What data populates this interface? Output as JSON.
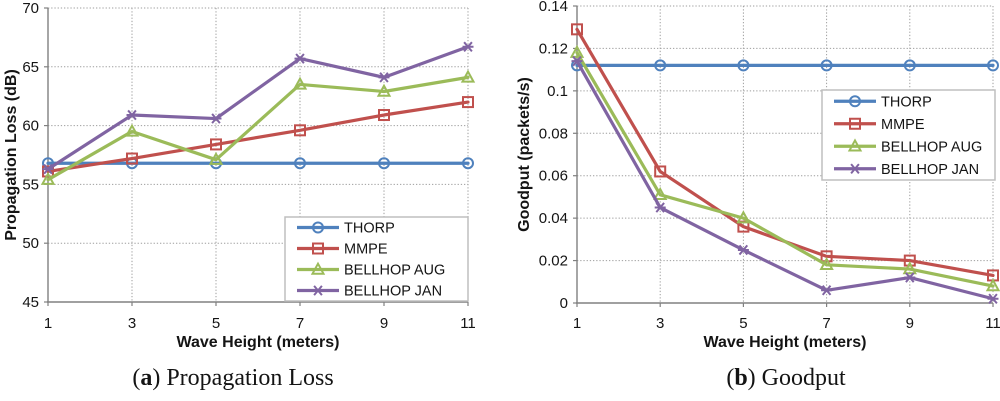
{
  "figure": {
    "background": "#ffffff",
    "grid_color": "#9e9e9e",
    "axis_color": "#808080",
    "legend_border_color": "#bfbfbf",
    "text_color": "#141414"
  },
  "chart_data": [
    {
      "type": "line",
      "panel": "a",
      "caption": {
        "prefix": "(",
        "letter": "a",
        "rest": ") Propagation Loss"
      },
      "xlabel": "Wave Height (meters)",
      "ylabel": "Propagation Loss (dB)",
      "x": [
        1,
        3,
        5,
        7,
        9,
        11
      ],
      "xlim": [
        1,
        11
      ],
      "ylim": [
        45,
        70
      ],
      "xticks": [
        1,
        3,
        5,
        7,
        9,
        11
      ],
      "xtick_labels": [
        "1",
        "3",
        "5",
        "7",
        "9",
        "11"
      ],
      "yticks": [
        45,
        50,
        55,
        60,
        65,
        70
      ],
      "ytick_labels": [
        "45",
        "50",
        "55",
        "60",
        "65",
        "70"
      ],
      "grid": "dotted",
      "legend_position": "lower-right-inside",
      "series": [
        {
          "name": "THORP",
          "color": "#4F81BD",
          "marker": "circle",
          "values": [
            56.8,
            56.8,
            56.8,
            56.8,
            56.8,
            56.8
          ]
        },
        {
          "name": "MMPE",
          "color": "#C0504D",
          "marker": "square",
          "values": [
            56.1,
            57.2,
            58.4,
            59.6,
            60.9,
            62.0
          ]
        },
        {
          "name": "BELLHOP AUG",
          "color": "#9BBB59",
          "marker": "triangle",
          "values": [
            55.4,
            59.5,
            57.1,
            63.5,
            62.9,
            64.1
          ]
        },
        {
          "name": "BELLHOP JAN",
          "color": "#8064A2",
          "marker": "asterisk",
          "values": [
            56.3,
            60.9,
            60.6,
            65.7,
            64.1,
            66.7
          ]
        }
      ]
    },
    {
      "type": "line",
      "panel": "b",
      "caption": {
        "prefix": "(",
        "letter": "b",
        "rest": ") Goodput"
      },
      "xlabel": "Wave Height (meters)",
      "ylabel": "Goodput (packets/s)",
      "x": [
        1,
        3,
        5,
        7,
        9,
        11
      ],
      "xlim": [
        1,
        11
      ],
      "ylim": [
        0,
        0.14
      ],
      "xticks": [
        1,
        3,
        5,
        7,
        9,
        11
      ],
      "xtick_labels": [
        "1",
        "3",
        "5",
        "7",
        "9",
        "11"
      ],
      "yticks": [
        0,
        0.02,
        0.04,
        0.06,
        0.08,
        0.1,
        0.12,
        0.14
      ],
      "ytick_labels": [
        "0",
        "0.02",
        "0.04",
        "0.06",
        "0.08",
        "0.1",
        "0.12",
        "0.14"
      ],
      "grid": "dotted",
      "legend_position": "upper-right-inside",
      "series": [
        {
          "name": "THORP",
          "color": "#4F81BD",
          "marker": "circle",
          "values": [
            0.112,
            0.112,
            0.112,
            0.112,
            0.112,
            0.112
          ]
        },
        {
          "name": "MMPE",
          "color": "#C0504D",
          "marker": "square",
          "values": [
            0.129,
            0.062,
            0.036,
            0.022,
            0.02,
            0.013
          ]
        },
        {
          "name": "BELLHOP AUG",
          "color": "#9BBB59",
          "marker": "triangle",
          "values": [
            0.118,
            0.051,
            0.04,
            0.018,
            0.016,
            0.008
          ]
        },
        {
          "name": "BELLHOP JAN",
          "color": "#8064A2",
          "marker": "asterisk",
          "values": [
            0.114,
            0.045,
            0.025,
            0.006,
            0.012,
            0.002
          ]
        }
      ]
    }
  ]
}
